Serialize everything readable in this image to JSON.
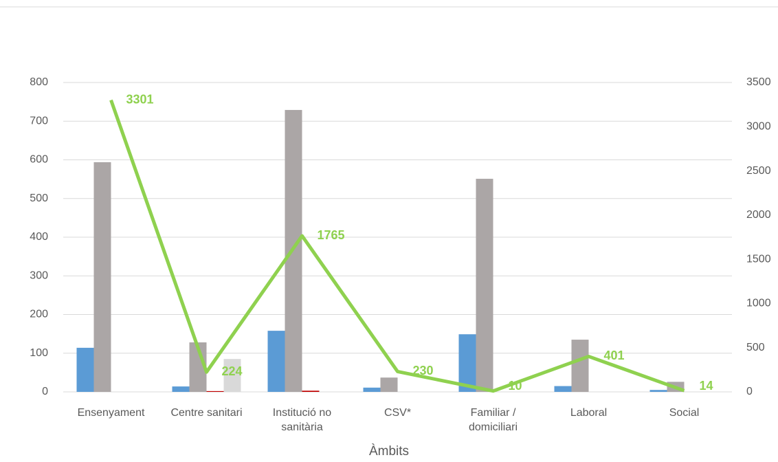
{
  "chart_data": {
    "type": "bar",
    "x_label": "Àmbits",
    "categories": [
      "Ensenyament",
      "Centre sanitari",
      "Institució no sanitària",
      "CSV*",
      "Familiar / domiciliari",
      "Laboral",
      "Social"
    ],
    "series": [
      {
        "color": "#5b9bd5",
        "values": [
          114,
          14,
          158,
          11,
          149,
          15,
          5
        ]
      },
      {
        "color": "#aba6a6",
        "values": [
          594,
          128,
          729,
          37,
          551,
          135,
          26
        ]
      },
      {
        "color": "#c00000",
        "values": [
          0,
          2,
          3,
          0,
          0,
          0,
          0
        ]
      },
      {
        "color": "#d9d9d9",
        "values": [
          0,
          85,
          0,
          0,
          0,
          0,
          0
        ]
      },
      {
        "type": "line",
        "axis": "y2",
        "color": "#8fd14f",
        "values": [
          3301,
          224,
          1765,
          230,
          10,
          401,
          14
        ]
      }
    ],
    "ylim": [
      0,
      800
    ],
    "yticks": [
      0,
      100,
      200,
      300,
      400,
      500,
      600,
      700,
      800
    ],
    "y2lim": [
      0,
      3500
    ],
    "y2ticks": [
      0,
      500,
      1000,
      1500,
      2000,
      2500,
      3000,
      3500
    ],
    "grid": true
  }
}
